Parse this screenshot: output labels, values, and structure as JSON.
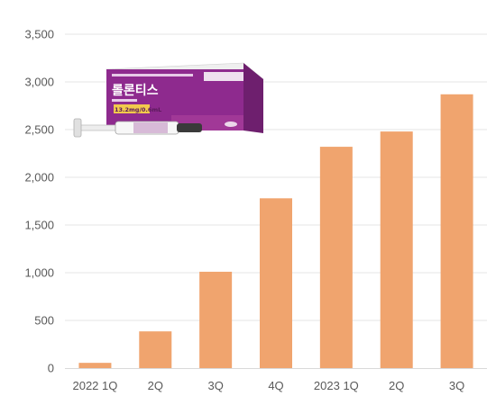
{
  "chart_data": {
    "type": "bar",
    "categories": [
      "2022 1Q",
      "2Q",
      "3Q",
      "4Q",
      "2023 1Q",
      "2Q",
      "3Q"
    ],
    "values": [
      55,
      385,
      1010,
      1780,
      2320,
      2480,
      2870
    ],
    "title": "",
    "xlabel": "",
    "ylabel": "",
    "ylim": [
      0,
      3500
    ],
    "yticks": [
      0,
      500,
      1000,
      1500,
      2000,
      2500,
      3000,
      3500
    ],
    "ytick_labels": [
      "0",
      "500",
      "1,000",
      "1,500",
      "2,000",
      "2,500",
      "3,000",
      "3,500"
    ],
    "grid": true,
    "legend": "none",
    "bar_color": "#F0A46E",
    "grid_color": "#E6E6E6"
  },
  "product_image": {
    "name": "롤론티스",
    "dose_label": "13.2mg/0.6mL",
    "box_color": "#8E2A8E",
    "box_top_color": "#F2F2F2"
  }
}
